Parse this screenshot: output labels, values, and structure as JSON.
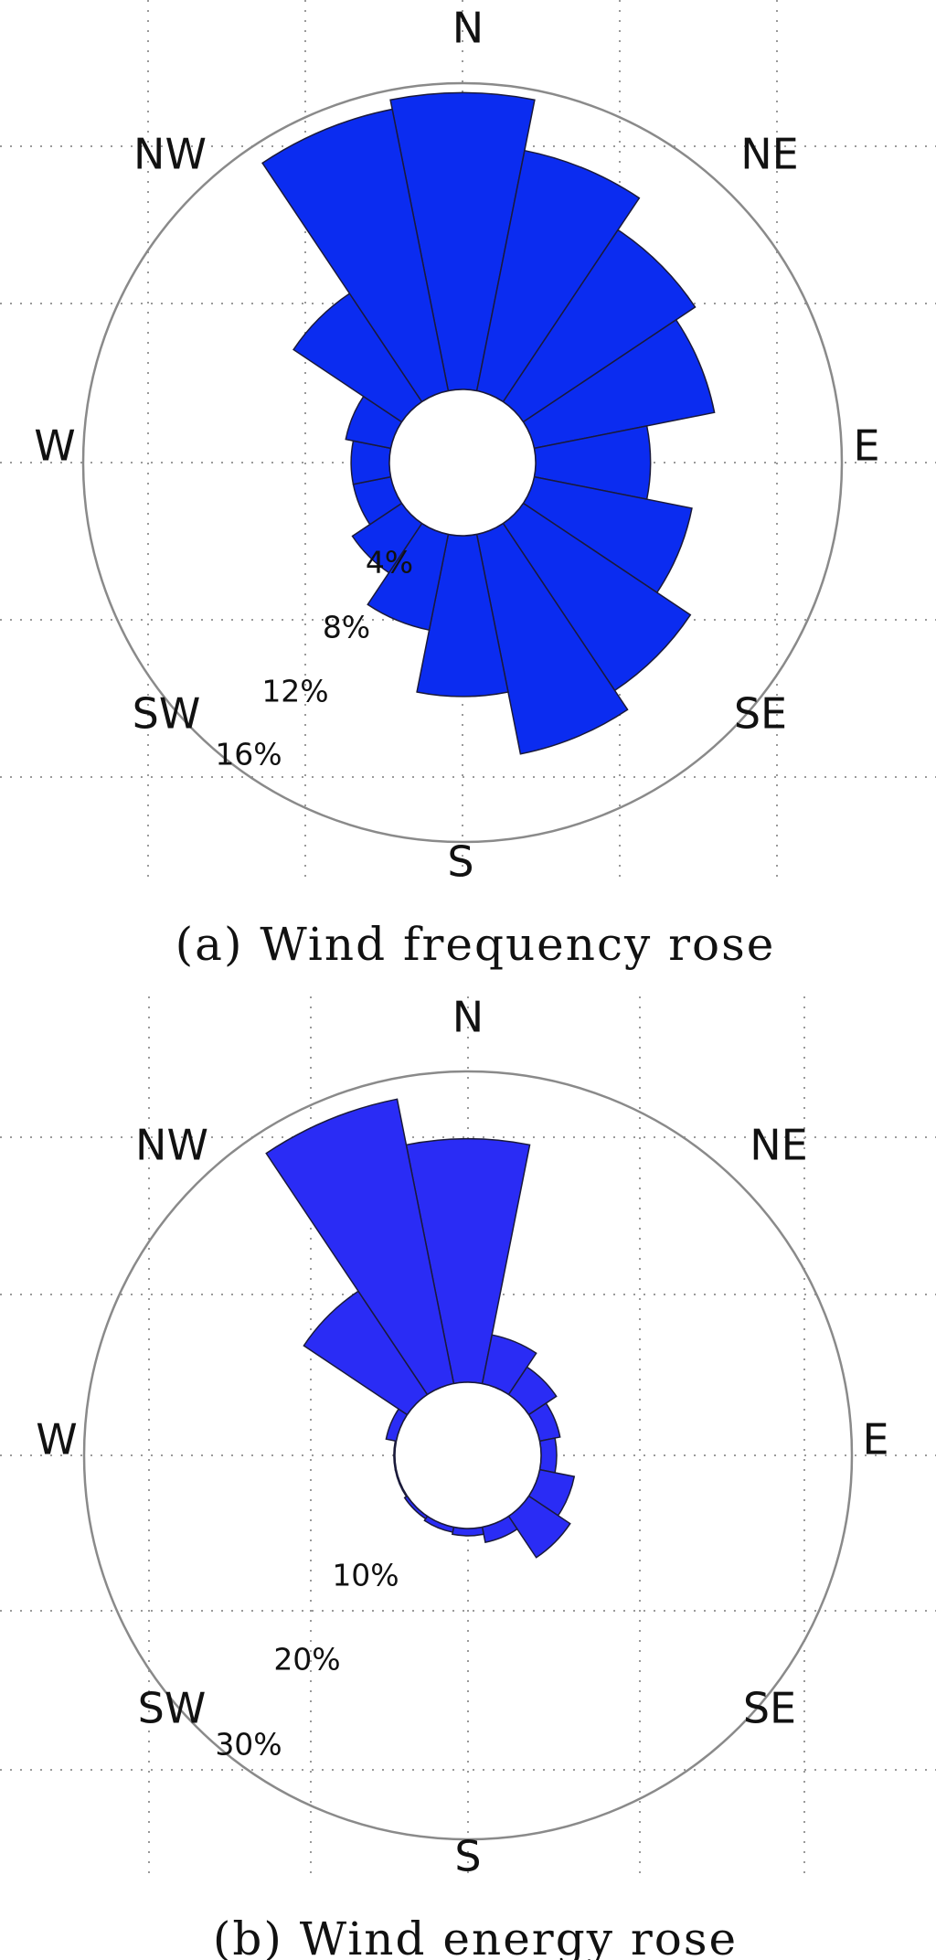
{
  "chart_data": [
    {
      "type": "wind-rose",
      "caption": "(a) Wind frequency rose",
      "directions": [
        "N",
        "NE",
        "E",
        "SE",
        "S",
        "SW",
        "W",
        "NW"
      ],
      "sectors": 16,
      "sector_start_deg": 0,
      "values": [
        15.5,
        12.8,
        10.8,
        9.6,
        6.0,
        8.4,
        10.5,
        11.7,
        8.4,
        5.1,
        3.1,
        2.0,
        2.0,
        2.4,
        6.8,
        15.0
      ],
      "radial_ticks": [
        4,
        8,
        12,
        16
      ],
      "radial_tick_labels": [
        "4%",
        "8%",
        "12%",
        "16%"
      ],
      "r_max": 16,
      "bar_color": "#0b2cf0"
    },
    {
      "type": "wind-rose",
      "caption": "(b) Wind energy rose",
      "directions": [
        "N",
        "NE",
        "E",
        "SE",
        "S",
        "SW",
        "W",
        "NW"
      ],
      "sectors": 16,
      "sector_start_deg": 0,
      "values": [
        23.5,
        4.8,
        3.2,
        2.0,
        1.5,
        3.4,
        4.8,
        1.5,
        0.7,
        0.5,
        0.3,
        0.1,
        0.1,
        1.0,
        12.0,
        28.0
      ],
      "radial_ticks": [
        10,
        20,
        30
      ],
      "radial_tick_labels": [
        "10%",
        "20%",
        "30%"
      ],
      "r_max": 30,
      "bar_color": "#2a2cf5"
    }
  ]
}
